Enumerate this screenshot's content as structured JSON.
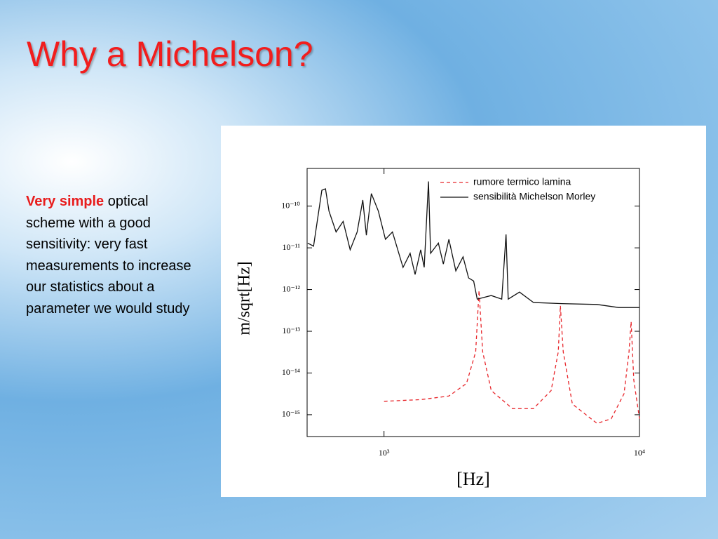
{
  "slide": {
    "title": "Why a Michelson?",
    "body": {
      "highlight": "Very simple",
      "text": "optical scheme with a good sensitivity: very fast measurements to increase our statistics about a parameter we would study"
    }
  },
  "chart_data": {
    "type": "line",
    "xlabel": "[Hz]",
    "ylabel": "m/sqrt[Hz]",
    "log_x": true,
    "log_y": true,
    "legend": "upper right",
    "xlim": [
      500,
      10000
    ],
    "ylim": [
      3e-16,
      8e-10
    ],
    "xticks": [
      {
        "value": 1000,
        "label": "10³"
      },
      {
        "value": 10000,
        "label": "10⁴"
      }
    ],
    "yticks": [
      {
        "value": 1e-10,
        "label": "10⁻¹⁰"
      },
      {
        "value": 1e-11,
        "label": "10⁻¹¹"
      },
      {
        "value": 1e-12,
        "label": "10⁻¹²"
      },
      {
        "value": 1e-13,
        "label": "10⁻¹³"
      },
      {
        "value": 1e-14,
        "label": "10⁻¹⁴"
      },
      {
        "value": 1e-15,
        "label": "10⁻¹⁵"
      }
    ],
    "series": [
      {
        "name": "rumore termico lamina",
        "color": "#e8262b",
        "dashed": true,
        "x": [
          1000,
          1392,
          1795,
          2103,
          2284,
          2355,
          2434,
          2628,
          3183,
          3846,
          4510,
          4810,
          4902,
          5030,
          5463,
          6824,
          7753,
          8700,
          9100,
          9275,
          9500,
          10000
        ],
        "values": [
          2.1e-15,
          2.3e-15,
          2.8e-15,
          5.6e-15,
          3.2e-14,
          9.5e-13,
          3.2e-14,
          3.8e-15,
          1.4e-15,
          1.4e-15,
          3.8e-15,
          3.2e-14,
          4.1e-13,
          3.2e-14,
          1.8e-15,
          6.2e-16,
          8e-16,
          3.2e-15,
          3.2e-14,
          1.7e-13,
          6.8e-15,
          8e-16
        ]
      },
      {
        "name": "sensibilità Michelson Morley",
        "color": "#111111",
        "dashed": false,
        "x": [
          503,
          530,
          571,
          590,
          609,
          649,
          692,
          737,
          785,
          826,
          853,
          892,
          950,
          1013,
          1079,
          1187,
          1265,
          1323,
          1392,
          1437,
          1493,
          1522,
          1632,
          1707,
          1795,
          1910,
          2039,
          2143,
          2243,
          2316,
          2628,
          2891,
          3004,
          3063,
          3392,
          3846,
          4965,
          6824,
          8286,
          10000
        ],
        "values": [
          1.3e-11,
          1.1e-11,
          2.4e-10,
          2.6e-10,
          7.6e-11,
          2.4e-11,
          4.3e-11,
          9e-12,
          2.4e-11,
          1.4e-10,
          2e-11,
          2e-10,
          7.6e-11,
          1.6e-11,
          2.4e-11,
          3.4e-12,
          7.4e-12,
          2.3e-12,
          9e-12,
          3.4e-12,
          3.9e-10,
          7.4e-12,
          1.3e-11,
          4.1e-12,
          1.6e-11,
          2.8e-12,
          6.1e-12,
          1.9e-12,
          1.6e-12,
          5.9e-13,
          7.2e-13,
          5.9e-13,
          2.1e-11,
          5.9e-13,
          8.7e-13,
          4.9e-13,
          4.6e-13,
          4.4e-13,
          3.7e-13,
          3.7e-13
        ]
      }
    ]
  }
}
